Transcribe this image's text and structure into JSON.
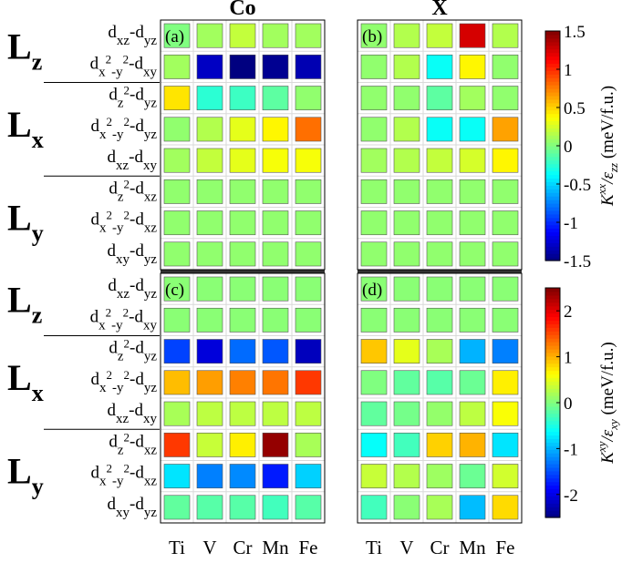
{
  "chart_data": {
    "type": "heatmap",
    "panel_titles": [
      "Co",
      "X"
    ],
    "panel_labels": [
      "(a)",
      "(b)",
      "(c)",
      "(d)"
    ],
    "x_categories": [
      "Ti",
      "V",
      "Cr",
      "Mn",
      "Fe"
    ],
    "row_groups": [
      {
        "big": "L",
        "sub": "z"
      },
      {
        "big": "L",
        "sub": "x"
      },
      {
        "big": "L",
        "sub": "y"
      }
    ],
    "rows": [
      {
        "base": "d",
        "sub1": "xz",
        "mid": "-d",
        "sub2": "yz"
      },
      {
        "base": "d",
        "sub1": "x",
        "sup1": "2",
        "sub1b": "-y",
        "sup2": "2",
        "mid": "-d",
        "sub2": "xy"
      },
      {
        "base": "d",
        "sub1": "z",
        "sup1": "2",
        "mid": "-d",
        "sub2": "yz"
      },
      {
        "base": "d",
        "sub1": "x",
        "sup1": "2",
        "sub1b": "-y",
        "sup2": "2",
        "mid": "-d",
        "sub2": "yz"
      },
      {
        "base": "d",
        "sub1": "xz",
        "mid": "-d",
        "sub2": "xy"
      },
      {
        "base": "d",
        "sub1": "z",
        "sup1": "2",
        "mid": "-d",
        "sub2": "xz"
      },
      {
        "base": "d",
        "sub1": "x",
        "sup1": "2",
        "sub1b": "-y",
        "sup2": "2",
        "mid": "-d",
        "sub2": "xz"
      },
      {
        "base": "d",
        "sub1": "xy",
        "mid": "-d",
        "sub2": "yz"
      }
    ],
    "panels": [
      {
        "id": "a",
        "values": [
          [
            0,
            0.1,
            0.2,
            0.1,
            0.1
          ],
          [
            0.1,
            -1.3,
            -1.5,
            -1.45,
            -1.35
          ],
          [
            0.45,
            -0.25,
            -0.2,
            -0.1,
            0.05
          ],
          [
            0.05,
            0.15,
            0.3,
            0.4,
            0.8
          ],
          [
            0.1,
            0.2,
            0.3,
            0.35,
            0.35
          ],
          [
            0.05,
            0.05,
            0.05,
            0.05,
            0.05
          ],
          [
            0.05,
            0.05,
            0.05,
            0.05,
            0.05
          ],
          [
            0.05,
            0.05,
            0.05,
            0.05,
            0.05
          ]
        ]
      },
      {
        "id": "b",
        "values": [
          [
            0.05,
            0.15,
            0.2,
            1.25,
            0.15
          ],
          [
            0.05,
            0.15,
            -0.35,
            0.4,
            0.05
          ],
          [
            0.05,
            0.05,
            -0.1,
            0.1,
            0.05
          ],
          [
            0.05,
            0.15,
            -0.35,
            -0.35,
            0.65
          ],
          [
            0.1,
            0.15,
            0.2,
            0.25,
            0.4
          ],
          [
            0.05,
            0.05,
            0.05,
            0.05,
            0.05
          ],
          [
            0.05,
            0.05,
            0.05,
            0.05,
            0.05
          ],
          [
            0.05,
            0.05,
            0.05,
            0.05,
            0.05
          ]
        ]
      },
      {
        "id": "c",
        "values": [
          [
            0.05,
            0.05,
            0.05,
            0.05,
            0.05
          ],
          [
            0.05,
            0.05,
            0.05,
            0.05,
            0.05
          ],
          [
            -1.55,
            -2.05,
            -1.35,
            -1.45,
            -2.2
          ],
          [
            0.95,
            1.1,
            1.25,
            1.3,
            1.6
          ],
          [
            0.2,
            0.3,
            0.3,
            0.3,
            0.3
          ],
          [
            1.6,
            0.35,
            0.7,
            2.4,
            0.2
          ],
          [
            -0.75,
            -1.25,
            -1.2,
            -1.75,
            -0.85
          ],
          [
            -0.15,
            -0.2,
            -0.2,
            -0.3,
            -0.2
          ]
        ]
      },
      {
        "id": "d",
        "values": [
          [
            0.05,
            0.05,
            0.05,
            0.05,
            0.05
          ],
          [
            0.05,
            0.05,
            0.05,
            0.05,
            0.05
          ],
          [
            0.9,
            0.5,
            0.2,
            -1.0,
            -1.25
          ],
          [
            0,
            -0.15,
            -0.2,
            -0.1,
            0.7
          ],
          [
            -0.15,
            -0.05,
            0.1,
            0.3,
            0.6
          ],
          [
            -0.6,
            -0.3,
            0.85,
            1.0,
            -0.75
          ],
          [
            0.35,
            0.25,
            0.15,
            -0.1,
            0.4
          ],
          [
            -0.3,
            0.05,
            0.2,
            -0.95,
            0.8
          ]
        ]
      }
    ],
    "colorbars": [
      {
        "range": [
          -1.5,
          1.5
        ],
        "ticks": [
          "1.5",
          "1",
          "0.5",
          "0",
          "-0.5",
          "-1",
          "-1.5"
        ],
        "tick_values": [
          1.5,
          1,
          0.5,
          0,
          -0.5,
          -1,
          -1.5
        ],
        "label_main": "K",
        "label_sup": "xx",
        "label_slash": "/ε",
        "label_sub": "zz",
        "label_unit": "(meV/f.u.)"
      },
      {
        "range": [
          -2.5,
          2.5
        ],
        "ticks": [
          "2",
          "1",
          "0",
          "-1",
          "-2"
        ],
        "tick_values": [
          2,
          1,
          0,
          -1,
          -2
        ],
        "label_main": "K",
        "label_sup": "xy",
        "label_slash": "/ε",
        "label_sub": "xy",
        "label_unit": "(meV/f.u.)"
      }
    ],
    "colormap": "jet",
    "grid": true
  }
}
